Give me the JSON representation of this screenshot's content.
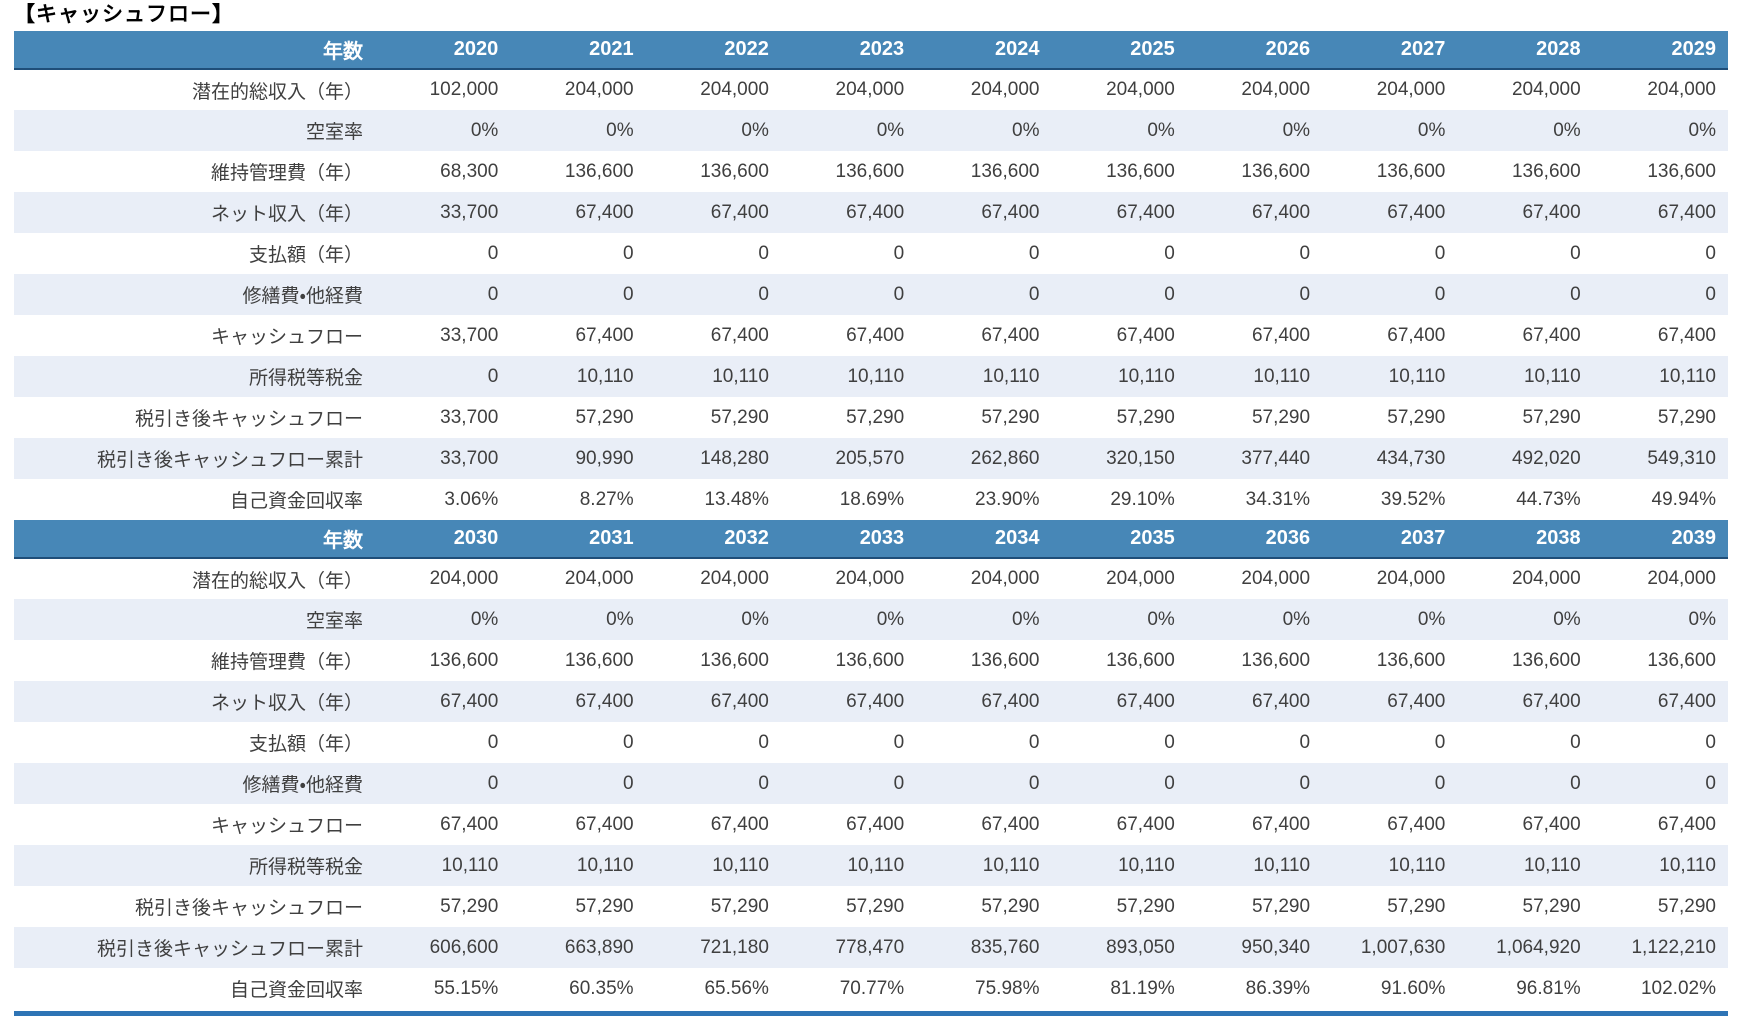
{
  "title": "【キャッシュフロー】",
  "year_header_label": "年数",
  "colors": {
    "header_bg": "#4787b7",
    "header_text": "#ffffff",
    "band_bg": "#e9eef7",
    "header_border": "#1f4e79",
    "bottom_bar": "#2e74b5",
    "cell_text": "#3f3f3f",
    "title_text": "#000000"
  },
  "tables": [
    {
      "years": [
        "2020",
        "2021",
        "2022",
        "2023",
        "2024",
        "2025",
        "2026",
        "2027",
        "2028",
        "2029"
      ],
      "rows": [
        {
          "label": "潜在的総収入（年）",
          "values": [
            "102,000",
            "204,000",
            "204,000",
            "204,000",
            "204,000",
            "204,000",
            "204,000",
            "204,000",
            "204,000",
            "204,000"
          ]
        },
        {
          "label": "空室率",
          "values": [
            "0%",
            "0%",
            "0%",
            "0%",
            "0%",
            "0%",
            "0%",
            "0%",
            "0%",
            "0%"
          ]
        },
        {
          "label": "維持管理費（年）",
          "values": [
            "68,300",
            "136,600",
            "136,600",
            "136,600",
            "136,600",
            "136,600",
            "136,600",
            "136,600",
            "136,600",
            "136,600"
          ]
        },
        {
          "label": "ネット収入（年）",
          "values": [
            "33,700",
            "67,400",
            "67,400",
            "67,400",
            "67,400",
            "67,400",
            "67,400",
            "67,400",
            "67,400",
            "67,400"
          ]
        },
        {
          "label": "支払額（年）",
          "values": [
            "0",
            "0",
            "0",
            "0",
            "0",
            "0",
            "0",
            "0",
            "0",
            "0"
          ]
        },
        {
          "label": "修繕費・他経費",
          "values": [
            "0",
            "0",
            "0",
            "0",
            "0",
            "0",
            "0",
            "0",
            "0",
            "0"
          ]
        },
        {
          "label": "キャッシュフロー",
          "values": [
            "33,700",
            "67,400",
            "67,400",
            "67,400",
            "67,400",
            "67,400",
            "67,400",
            "67,400",
            "67,400",
            "67,400"
          ]
        },
        {
          "label": "所得税等税金",
          "values": [
            "0",
            "10,110",
            "10,110",
            "10,110",
            "10,110",
            "10,110",
            "10,110",
            "10,110",
            "10,110",
            "10,110"
          ]
        },
        {
          "label": "税引き後キャッシュフロー",
          "values": [
            "33,700",
            "57,290",
            "57,290",
            "57,290",
            "57,290",
            "57,290",
            "57,290",
            "57,290",
            "57,290",
            "57,290"
          ]
        },
        {
          "label": "税引き後キャッシュフロー累計",
          "values": [
            "33,700",
            "90,990",
            "148,280",
            "205,570",
            "262,860",
            "320,150",
            "377,440",
            "434,730",
            "492,020",
            "549,310"
          ]
        },
        {
          "label": "自己資金回収率",
          "values": [
            "3.06%",
            "8.27%",
            "13.48%",
            "18.69%",
            "23.90%",
            "29.10%",
            "34.31%",
            "39.52%",
            "44.73%",
            "49.94%"
          ]
        }
      ]
    },
    {
      "years": [
        "2030",
        "2031",
        "2032",
        "2033",
        "2034",
        "2035",
        "2036",
        "2037",
        "2038",
        "2039"
      ],
      "rows": [
        {
          "label": "潜在的総収入（年）",
          "values": [
            "204,000",
            "204,000",
            "204,000",
            "204,000",
            "204,000",
            "204,000",
            "204,000",
            "204,000",
            "204,000",
            "204,000"
          ]
        },
        {
          "label": "空室率",
          "values": [
            "0%",
            "0%",
            "0%",
            "0%",
            "0%",
            "0%",
            "0%",
            "0%",
            "0%",
            "0%"
          ]
        },
        {
          "label": "維持管理費（年）",
          "values": [
            "136,600",
            "136,600",
            "136,600",
            "136,600",
            "136,600",
            "136,600",
            "136,600",
            "136,600",
            "136,600",
            "136,600"
          ]
        },
        {
          "label": "ネット収入（年）",
          "values": [
            "67,400",
            "67,400",
            "67,400",
            "67,400",
            "67,400",
            "67,400",
            "67,400",
            "67,400",
            "67,400",
            "67,400"
          ]
        },
        {
          "label": "支払額（年）",
          "values": [
            "0",
            "0",
            "0",
            "0",
            "0",
            "0",
            "0",
            "0",
            "0",
            "0"
          ]
        },
        {
          "label": "修繕費・他経費",
          "values": [
            "0",
            "0",
            "0",
            "0",
            "0",
            "0",
            "0",
            "0",
            "0",
            "0"
          ]
        },
        {
          "label": "キャッシュフロー",
          "values": [
            "67,400",
            "67,400",
            "67,400",
            "67,400",
            "67,400",
            "67,400",
            "67,400",
            "67,400",
            "67,400",
            "67,400"
          ]
        },
        {
          "label": "所得税等税金",
          "values": [
            "10,110",
            "10,110",
            "10,110",
            "10,110",
            "10,110",
            "10,110",
            "10,110",
            "10,110",
            "10,110",
            "10,110"
          ]
        },
        {
          "label": "税引き後キャッシュフロー",
          "values": [
            "57,290",
            "57,290",
            "57,290",
            "57,290",
            "57,290",
            "57,290",
            "57,290",
            "57,290",
            "57,290",
            "57,290"
          ]
        },
        {
          "label": "税引き後キャッシュフロー累計",
          "values": [
            "606,600",
            "663,890",
            "721,180",
            "778,470",
            "835,760",
            "893,050",
            "950,340",
            "1,007,630",
            "1,064,920",
            "1,122,210"
          ]
        },
        {
          "label": "自己資金回収率",
          "values": [
            "55.15%",
            "60.35%",
            "65.56%",
            "70.77%",
            "75.98%",
            "81.19%",
            "86.39%",
            "91.60%",
            "96.81%",
            "102.02%"
          ]
        }
      ]
    }
  ]
}
